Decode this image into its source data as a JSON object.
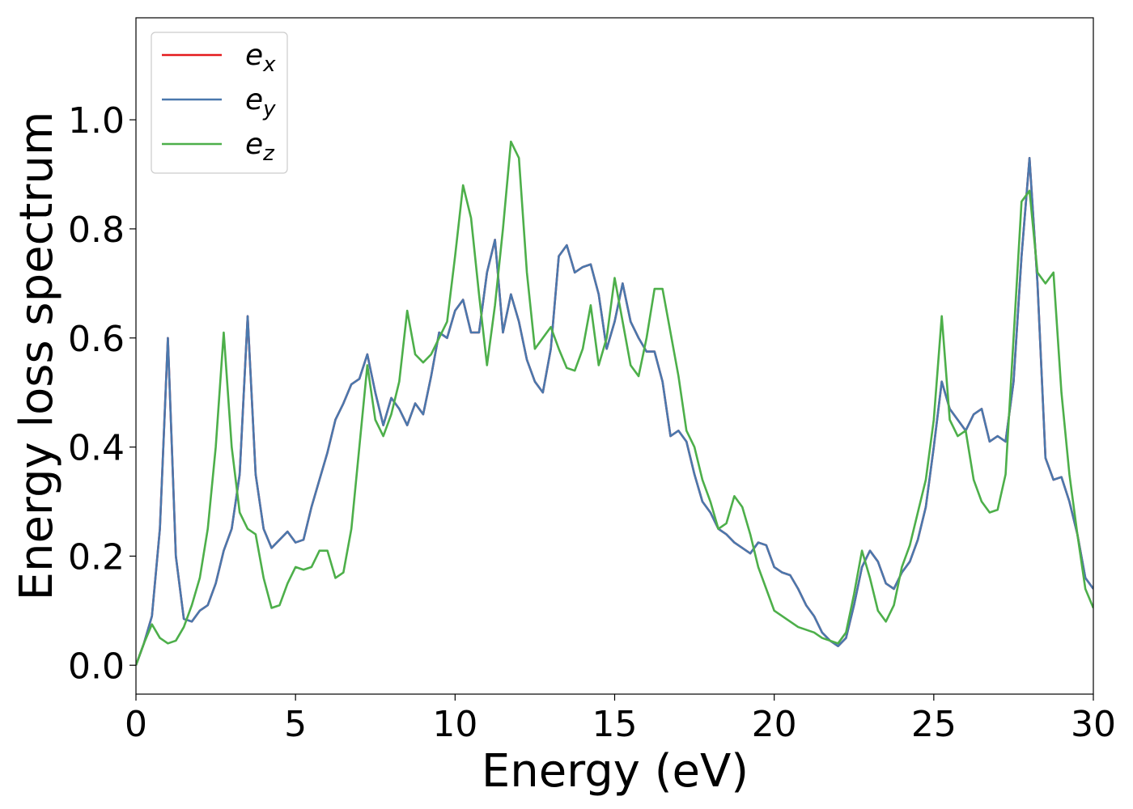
{
  "chart_data": {
    "type": "line",
    "xlabel": "Energy (eV)",
    "ylabel": "Energy loss spectrum",
    "x": [
      0,
      0.25,
      0.5,
      0.75,
      1,
      1.25,
      1.5,
      1.75,
      2,
      2.25,
      2.5,
      2.75,
      3,
      3.25,
      3.5,
      3.75,
      4,
      4.25,
      4.5,
      4.75,
      5,
      5.25,
      5.5,
      5.75,
      6,
      6.25,
      6.5,
      6.75,
      7,
      7.25,
      7.5,
      7.75,
      8,
      8.25,
      8.5,
      8.75,
      9,
      9.25,
      9.5,
      9.75,
      10,
      10.25,
      10.5,
      10.75,
      11,
      11.25,
      11.5,
      11.75,
      12,
      12.25,
      12.5,
      12.75,
      13,
      13.25,
      13.5,
      13.75,
      14,
      14.25,
      14.5,
      14.75,
      15,
      15.25,
      15.5,
      15.75,
      16,
      16.25,
      16.5,
      16.75,
      17,
      17.25,
      17.5,
      17.75,
      18,
      18.25,
      18.5,
      18.75,
      19,
      19.25,
      19.5,
      19.75,
      20,
      20.25,
      20.5,
      20.75,
      21,
      21.25,
      21.5,
      21.75,
      22,
      22.25,
      22.5,
      22.75,
      23,
      23.25,
      23.5,
      23.75,
      24,
      24.25,
      24.5,
      24.75,
      25,
      25.25,
      25.5,
      25.75,
      26,
      26.25,
      26.5,
      26.75,
      27,
      27.25,
      27.5,
      27.75,
      28,
      28.25,
      28.5,
      28.75,
      29,
      29.25,
      29.5,
      29.75,
      30
    ],
    "series": [
      {
        "name": "ex",
        "color": "#e41a1c",
        "values": [
          0,
          0.04,
          0.09,
          0.25,
          0.6,
          0.2,
          0.085,
          0.08,
          0.1,
          0.11,
          0.15,
          0.21,
          0.25,
          0.35,
          0.64,
          0.35,
          0.25,
          0.215,
          0.23,
          0.245,
          0.225,
          0.23,
          0.29,
          0.34,
          0.39,
          0.45,
          0.48,
          0.515,
          0.525,
          0.57,
          0.5,
          0.44,
          0.49,
          0.47,
          0.44,
          0.48,
          0.46,
          0.53,
          0.61,
          0.6,
          0.65,
          0.67,
          0.61,
          0.61,
          0.72,
          0.78,
          0.61,
          0.68,
          0.63,
          0.56,
          0.52,
          0.5,
          0.58,
          0.75,
          0.77,
          0.72,
          0.73,
          0.735,
          0.68,
          0.58,
          0.63,
          0.7,
          0.63,
          0.6,
          0.575,
          0.575,
          0.52,
          0.42,
          0.43,
          0.41,
          0.35,
          0.3,
          0.28,
          0.25,
          0.24,
          0.225,
          0.215,
          0.205,
          0.225,
          0.22,
          0.18,
          0.17,
          0.165,
          0.14,
          0.11,
          0.09,
          0.06,
          0.045,
          0.035,
          0.05,
          0.11,
          0.18,
          0.21,
          0.19,
          0.15,
          0.14,
          0.17,
          0.19,
          0.23,
          0.29,
          0.4,
          0.52,
          0.47,
          0.45,
          0.43,
          0.46,
          0.47,
          0.41,
          0.42,
          0.41,
          0.52,
          0.75,
          0.93,
          0.7,
          0.38,
          0.34,
          0.345,
          0.3,
          0.24,
          0.16,
          0.14
        ]
      },
      {
        "name": "ey",
        "color": "#4a78ad",
        "values": [
          0,
          0.04,
          0.09,
          0.25,
          0.6,
          0.2,
          0.085,
          0.08,
          0.1,
          0.11,
          0.15,
          0.21,
          0.25,
          0.35,
          0.64,
          0.35,
          0.25,
          0.215,
          0.23,
          0.245,
          0.225,
          0.23,
          0.29,
          0.34,
          0.39,
          0.45,
          0.48,
          0.515,
          0.525,
          0.57,
          0.5,
          0.44,
          0.49,
          0.47,
          0.44,
          0.48,
          0.46,
          0.53,
          0.61,
          0.6,
          0.65,
          0.67,
          0.61,
          0.61,
          0.72,
          0.78,
          0.61,
          0.68,
          0.63,
          0.56,
          0.52,
          0.5,
          0.58,
          0.75,
          0.77,
          0.72,
          0.73,
          0.735,
          0.68,
          0.58,
          0.63,
          0.7,
          0.63,
          0.6,
          0.575,
          0.575,
          0.52,
          0.42,
          0.43,
          0.41,
          0.35,
          0.3,
          0.28,
          0.25,
          0.24,
          0.225,
          0.215,
          0.205,
          0.225,
          0.22,
          0.18,
          0.17,
          0.165,
          0.14,
          0.11,
          0.09,
          0.06,
          0.045,
          0.035,
          0.05,
          0.11,
          0.18,
          0.21,
          0.19,
          0.15,
          0.14,
          0.17,
          0.19,
          0.23,
          0.29,
          0.4,
          0.52,
          0.47,
          0.45,
          0.43,
          0.46,
          0.47,
          0.41,
          0.42,
          0.41,
          0.52,
          0.75,
          0.93,
          0.7,
          0.38,
          0.34,
          0.345,
          0.3,
          0.24,
          0.16,
          0.14
        ]
      },
      {
        "name": "ez",
        "color": "#4daf4a",
        "values": [
          0,
          0.04,
          0.075,
          0.05,
          0.04,
          0.045,
          0.07,
          0.11,
          0.16,
          0.25,
          0.4,
          0.61,
          0.4,
          0.28,
          0.25,
          0.24,
          0.16,
          0.105,
          0.11,
          0.15,
          0.18,
          0.175,
          0.18,
          0.21,
          0.21,
          0.16,
          0.17,
          0.25,
          0.4,
          0.55,
          0.45,
          0.42,
          0.46,
          0.52,
          0.65,
          0.57,
          0.555,
          0.57,
          0.6,
          0.63,
          0.75,
          0.88,
          0.82,
          0.68,
          0.55,
          0.66,
          0.8,
          0.96,
          0.93,
          0.72,
          0.58,
          0.6,
          0.62,
          0.58,
          0.545,
          0.54,
          0.58,
          0.66,
          0.55,
          0.6,
          0.71,
          0.63,
          0.55,
          0.53,
          0.6,
          0.69,
          0.69,
          0.61,
          0.53,
          0.43,
          0.4,
          0.34,
          0.3,
          0.25,
          0.26,
          0.31,
          0.29,
          0.24,
          0.18,
          0.14,
          0.1,
          0.09,
          0.08,
          0.07,
          0.065,
          0.06,
          0.05,
          0.045,
          0.04,
          0.06,
          0.13,
          0.21,
          0.16,
          0.1,
          0.08,
          0.11,
          0.18,
          0.22,
          0.28,
          0.34,
          0.45,
          0.64,
          0.45,
          0.42,
          0.43,
          0.34,
          0.3,
          0.28,
          0.285,
          0.35,
          0.6,
          0.85,
          0.87,
          0.72,
          0.7,
          0.72,
          0.5,
          0.35,
          0.24,
          0.14,
          0.105
        ]
      }
    ],
    "xlim": [
      0,
      30
    ],
    "xticks": [
      0,
      5,
      10,
      15,
      20,
      25,
      30
    ],
    "ylim": [
      -0.053,
      1.187
    ],
    "yticks": [
      {
        "value": 0,
        "label": "0.0"
      },
      0.2,
      0.4,
      0.6,
      0.8,
      {
        "value": 1,
        "label": "1.0"
      }
    ],
    "grid": false,
    "legend": "upper left"
  }
}
